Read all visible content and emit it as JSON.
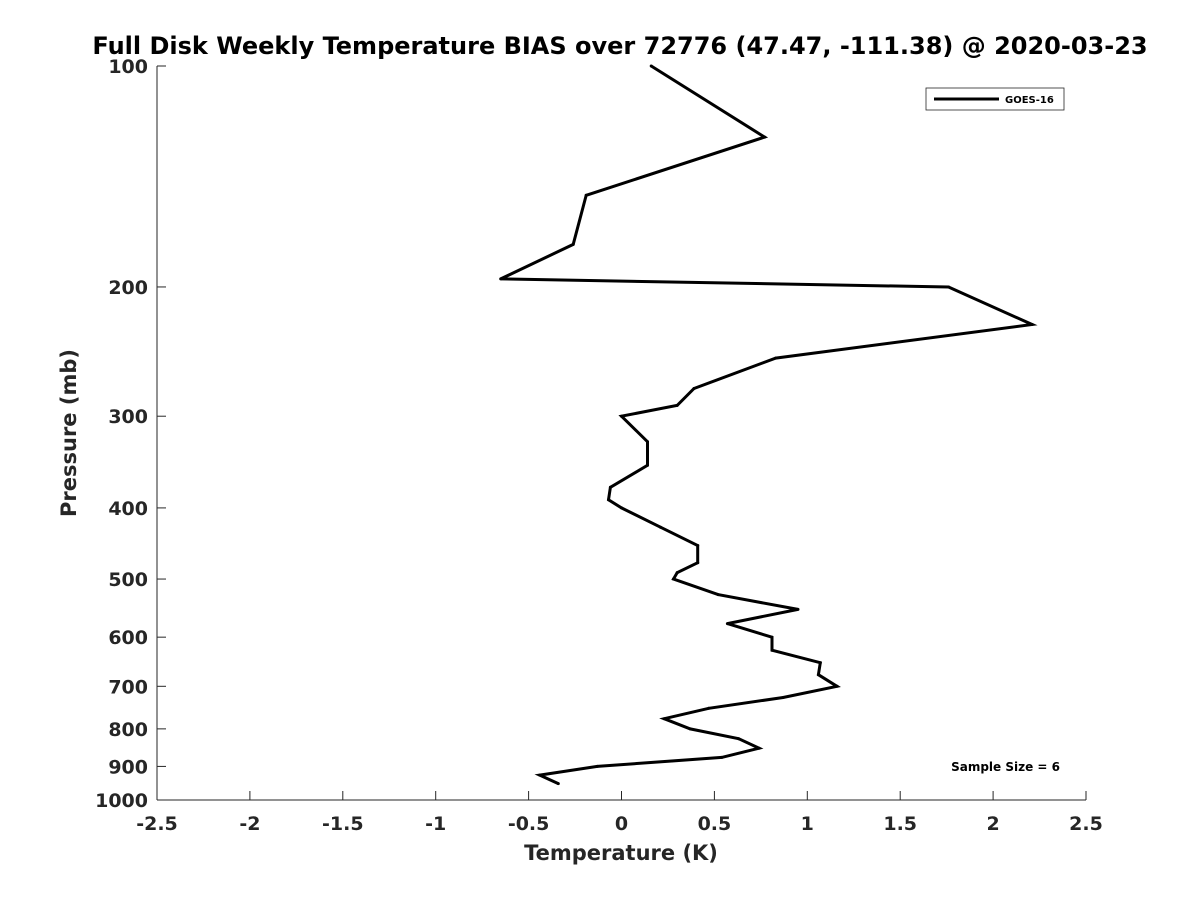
{
  "chart_data": {
    "type": "line",
    "title": "Full Disk Weekly Temperature BIAS over 72776 (47.47, -111.38) @ 2020-03-23",
    "xlabel": "Temperature (K)",
    "ylabel": "Pressure (mb)",
    "xlim": [
      -2.5,
      2.5
    ],
    "ylim": [
      1000,
      100
    ],
    "y_scale": "log",
    "y_reversed": true,
    "grid": false,
    "legend_placement": "top-right",
    "x_ticks": [
      "-2.5",
      "-2",
      "-1.5",
      "-1",
      "-0.5",
      "0",
      "0.5",
      "1",
      "1.5",
      "2",
      "2.5"
    ],
    "x_tick_values": [
      -2.5,
      -2,
      -1.5,
      -1,
      -0.5,
      0,
      0.5,
      1,
      1.5,
      2,
      2.5
    ],
    "y_ticks": [
      "100",
      "200",
      "300",
      "400",
      "500",
      "600",
      "700",
      "800",
      "900",
      "1000"
    ],
    "y_tick_values": [
      100,
      200,
      300,
      400,
      500,
      600,
      700,
      800,
      900,
      1000
    ],
    "series": [
      {
        "name": "GOES-16",
        "color": "#000000",
        "points": [
          {
            "x": 0.16,
            "p": 100
          },
          {
            "x": 0.77,
            "p": 125
          },
          {
            "x": -0.19,
            "p": 150
          },
          {
            "x": -0.26,
            "p": 175
          },
          {
            "x": -0.65,
            "p": 195
          },
          {
            "x": 1.76,
            "p": 200
          },
          {
            "x": 2.21,
            "p": 225
          },
          {
            "x": 0.83,
            "p": 250
          },
          {
            "x": 0.39,
            "p": 275
          },
          {
            "x": 0.3,
            "p": 290
          },
          {
            "x": 0.0,
            "p": 300
          },
          {
            "x": 0.14,
            "p": 325
          },
          {
            "x": 0.14,
            "p": 350
          },
          {
            "x": -0.06,
            "p": 375
          },
          {
            "x": -0.07,
            "p": 390
          },
          {
            "x": 0.0,
            "p": 400
          },
          {
            "x": 0.21,
            "p": 425
          },
          {
            "x": 0.41,
            "p": 450
          },
          {
            "x": 0.41,
            "p": 475
          },
          {
            "x": 0.3,
            "p": 490
          },
          {
            "x": 0.28,
            "p": 500
          },
          {
            "x": 0.52,
            "p": 525
          },
          {
            "x": 0.95,
            "p": 550
          },
          {
            "x": 0.57,
            "p": 575
          },
          {
            "x": 0.81,
            "p": 600
          },
          {
            "x": 0.81,
            "p": 625
          },
          {
            "x": 1.07,
            "p": 650
          },
          {
            "x": 1.06,
            "p": 675
          },
          {
            "x": 1.16,
            "p": 700
          },
          {
            "x": 0.87,
            "p": 725
          },
          {
            "x": 0.47,
            "p": 750
          },
          {
            "x": 0.23,
            "p": 775
          },
          {
            "x": 0.37,
            "p": 800
          },
          {
            "x": 0.63,
            "p": 825
          },
          {
            "x": 0.74,
            "p": 850
          },
          {
            "x": 0.54,
            "p": 875
          },
          {
            "x": -0.13,
            "p": 900
          },
          {
            "x": -0.44,
            "p": 925
          },
          {
            "x": -0.34,
            "p": 950
          }
        ]
      }
    ],
    "annotation": "Sample Size = 6"
  }
}
